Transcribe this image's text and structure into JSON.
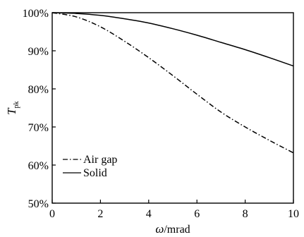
{
  "chart_data": {
    "type": "line",
    "xlabel_symbol": "ω",
    "xlabel_unit": "/mrad",
    "ylabel_symbol": "T",
    "ylabel_subscript": "pk",
    "xlim": [
      0,
      10
    ],
    "ylim": [
      50,
      100
    ],
    "x_ticks": [
      0,
      2,
      4,
      6,
      8,
      10
    ],
    "x_tick_labels": [
      "0",
      "2",
      "4",
      "6",
      "8",
      "10"
    ],
    "y_ticks": [
      50,
      60,
      70,
      80,
      90,
      100
    ],
    "y_tick_labels": [
      "50%",
      "60%",
      "70%",
      "80%",
      "90%",
      "100%"
    ],
    "grid": false,
    "legend_position": "bottom-left",
    "series": [
      {
        "name": "Air gap",
        "style": "dash-dot",
        "color": "#000000",
        "x": [
          0,
          1,
          2,
          3,
          4,
          5,
          6,
          7,
          8,
          9,
          10
        ],
        "y": [
          100,
          98.9,
          96.3,
          92.5,
          88.2,
          83.5,
          78.6,
          73.9,
          70.0,
          66.5,
          63.2
        ]
      },
      {
        "name": "Solid",
        "style": "solid",
        "color": "#000000",
        "x": [
          0,
          1,
          2,
          3,
          4,
          5,
          6,
          7,
          8,
          9,
          10
        ],
        "y": [
          100,
          99.8,
          99.3,
          98.4,
          97.3,
          95.8,
          94.1,
          92.2,
          90.3,
          88.2,
          86.0
        ]
      }
    ]
  }
}
